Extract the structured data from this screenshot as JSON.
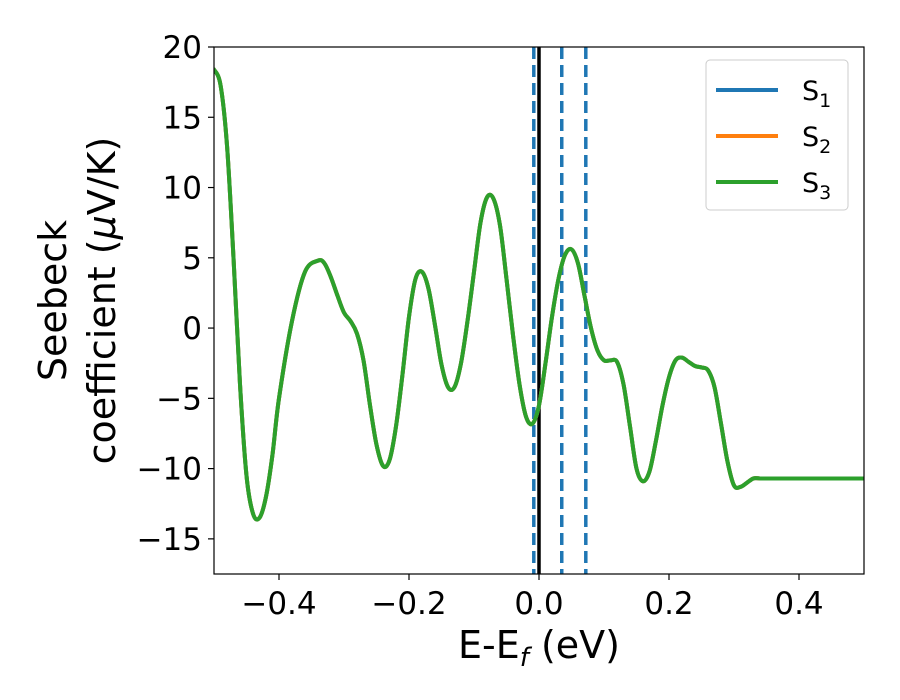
{
  "chart_data": {
    "type": "line",
    "title": "",
    "xlabel": {
      "main": "E-E",
      "sub": "f",
      "unit": " (eV)"
    },
    "ylabel": {
      "line1": "Seebeck",
      "line2_prefix": "coefficient  (",
      "mu": "μ",
      "line2_suffix": "V/K)"
    },
    "xlim": [
      -0.5,
      0.5
    ],
    "ylim": [
      -17.5,
      20
    ],
    "xticks": [
      -0.4,
      -0.2,
      0.0,
      0.2,
      0.4
    ],
    "xtick_labels": [
      "−0.4",
      "−0.2",
      "0.0",
      "0.2",
      "0.4"
    ],
    "yticks": [
      -15,
      -10,
      -5,
      0,
      5,
      10,
      15,
      20
    ],
    "ytick_labels": [
      "−15",
      "−10",
      "−5",
      "0",
      "5",
      "10",
      "15",
      "20"
    ],
    "grid": false,
    "legend_position": "top-right",
    "series": [
      {
        "name": "S",
        "sub": "1",
        "color": "#1f77b4"
      },
      {
        "name": "S",
        "sub": "2",
        "color": "#ff7f0e"
      },
      {
        "name": "S",
        "sub": "3",
        "color": "#2ca02c"
      }
    ],
    "x": [
      -0.5,
      -0.49,
      -0.48,
      -0.47,
      -0.46,
      -0.45,
      -0.44,
      -0.43,
      -0.42,
      -0.41,
      -0.4,
      -0.38,
      -0.36,
      -0.34,
      -0.33,
      -0.32,
      -0.31,
      -0.3,
      -0.29,
      -0.28,
      -0.27,
      -0.26,
      -0.25,
      -0.24,
      -0.23,
      -0.22,
      -0.21,
      -0.2,
      -0.19,
      -0.18,
      -0.17,
      -0.16,
      -0.15,
      -0.14,
      -0.13,
      -0.12,
      -0.11,
      -0.1,
      -0.09,
      -0.08,
      -0.07,
      -0.06,
      -0.05,
      -0.04,
      -0.03,
      -0.02,
      -0.01,
      0.0,
      0.01,
      0.02,
      0.03,
      0.04,
      0.05,
      0.06,
      0.07,
      0.08,
      0.09,
      0.1,
      0.11,
      0.12,
      0.13,
      0.14,
      0.15,
      0.16,
      0.17,
      0.18,
      0.19,
      0.2,
      0.21,
      0.22,
      0.23,
      0.24,
      0.25,
      0.26,
      0.27,
      0.28,
      0.29,
      0.3,
      0.31,
      0.32,
      0.33,
      0.34,
      0.35,
      0.36,
      0.37,
      0.38,
      0.39,
      0.4,
      0.41,
      0.42,
      0.43,
      0.44,
      0.45,
      0.46,
      0.47,
      0.48,
      0.49,
      0.5
    ],
    "y": [
      18.4,
      17.3,
      13.0,
      5.0,
      -4.0,
      -10.5,
      -13.2,
      -13.5,
      -12.0,
      -9.0,
      -5.0,
      0.5,
      4.0,
      4.8,
      4.6,
      3.6,
      2.3,
      1.1,
      0.5,
      -0.4,
      -2.3,
      -5.5,
      -8.3,
      -9.8,
      -9.4,
      -7.0,
      -3.3,
      0.8,
      3.5,
      4.0,
      2.8,
      0.2,
      -2.6,
      -4.2,
      -4.2,
      -2.5,
      0.5,
      4.0,
      7.5,
      9.3,
      9.2,
      7.3,
      3.5,
      -0.5,
      -4.0,
      -6.3,
      -6.8,
      -5.5,
      -2.5,
      0.8,
      3.5,
      5.2,
      5.6,
      4.6,
      2.3,
      0.0,
      -1.6,
      -2.3,
      -2.3,
      -2.4,
      -4.0,
      -7.0,
      -10.0,
      -10.9,
      -10.2,
      -8.0,
      -5.5,
      -3.5,
      -2.3,
      -2.1,
      -2.4,
      -2.7,
      -2.8,
      -3.0,
      -4.2,
      -6.8,
      -9.5,
      -11.2,
      -11.3,
      -11.0,
      -10.7,
      -10.7,
      -10.7,
      -10.7,
      -10.7,
      -10.7,
      -10.7,
      -10.7,
      -10.7,
      -10.7,
      -10.7,
      -10.7,
      -10.7,
      -10.7,
      -10.7,
      -10.7,
      -10.7,
      -10.7
    ],
    "vlines": {
      "dashed": {
        "x": [
          -0.008,
          0.035,
          0.072
        ],
        "color": "#1f77b4"
      },
      "solid": {
        "x": [
          0.0
        ],
        "color": "#000000"
      }
    }
  }
}
